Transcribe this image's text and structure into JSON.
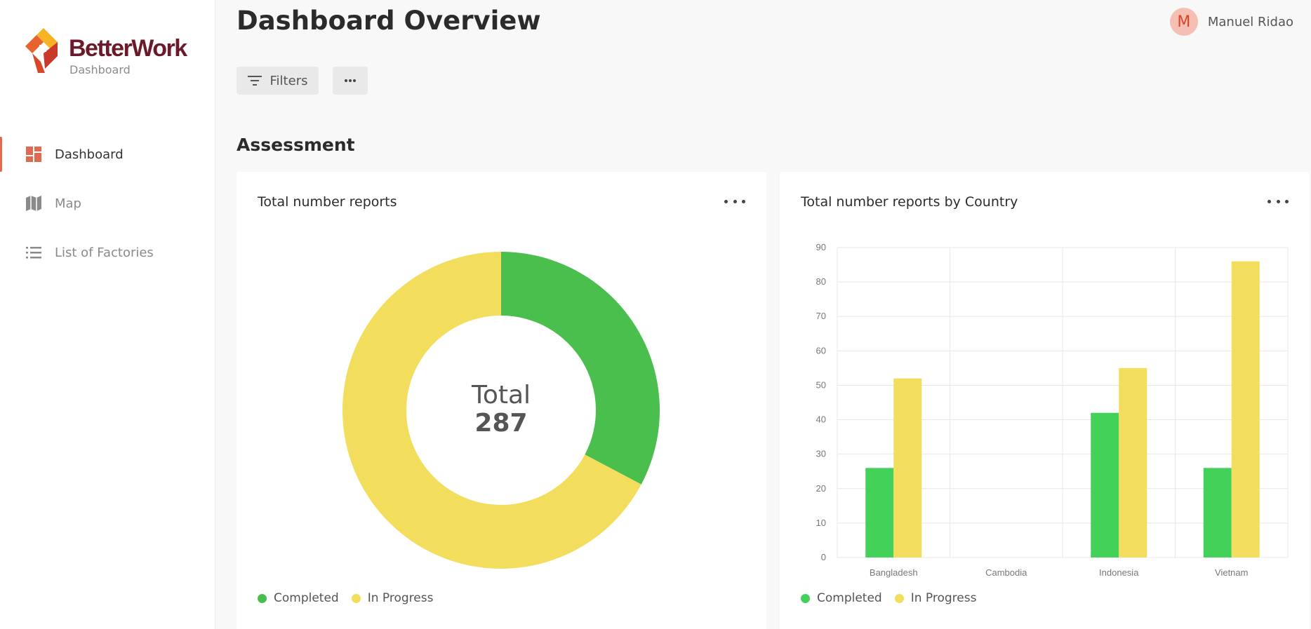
{
  "brand": {
    "name": "BetterWork",
    "subtitle": "Dashboard"
  },
  "sidebar": {
    "items": [
      {
        "label": "Dashboard",
        "icon": "dashboard-icon",
        "active": true
      },
      {
        "label": "Map",
        "icon": "map-icon",
        "active": false
      },
      {
        "label": "List of Factories",
        "icon": "list-icon",
        "active": false
      }
    ]
  },
  "header": {
    "title": "Dashboard Overview",
    "user": {
      "initial": "M",
      "name": "Manuel Ridao"
    }
  },
  "toolbar": {
    "filters_label": "Filters"
  },
  "section": {
    "title": "Assessment"
  },
  "colors": {
    "completed": "#4bbf4e",
    "in_progress": "#f2de5c",
    "bar_completed": "#43d15a",
    "accent": "#e06a4f"
  },
  "cards": {
    "donut": {
      "title": "Total number reports",
      "center_label": "Total",
      "center_value": "287",
      "legend": [
        "Completed",
        "In Progress"
      ]
    },
    "bars": {
      "title": "Total number reports by Country",
      "legend": [
        "Completed",
        "In Progress"
      ]
    }
  },
  "chart_data": [
    {
      "type": "pie",
      "title": "Total number reports",
      "labels": [
        "Completed",
        "In Progress"
      ],
      "values": [
        94,
        193
      ],
      "total": 287
    },
    {
      "type": "bar",
      "title": "Total number reports by Country",
      "categories": [
        "Bangladesh",
        "Cambodia",
        "Indonesia",
        "Vietnam"
      ],
      "series": [
        {
          "name": "Completed",
          "values": [
            26,
            0,
            42,
            26
          ]
        },
        {
          "name": "In Progress",
          "values": [
            52,
            0,
            55,
            86
          ]
        }
      ],
      "ylim": [
        0,
        90
      ],
      "yticks": [
        0,
        10,
        20,
        30,
        40,
        50,
        60,
        70,
        80,
        90
      ],
      "grid": true,
      "legend_position": "bottom-left"
    }
  ]
}
